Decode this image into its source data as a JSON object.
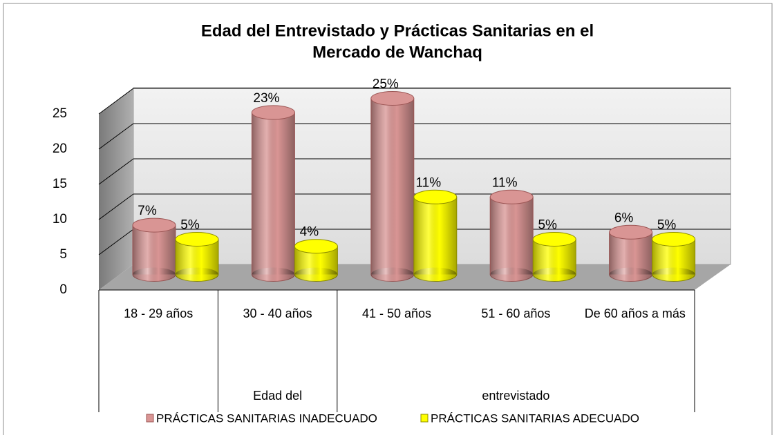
{
  "chart_data": {
    "type": "bar3d",
    "title": [
      "Edad del Entrevistado y Prácticas Sanitarias en el",
      "Mercado de Wanchaq"
    ],
    "categories": [
      "18 - 29 años",
      "30 - 40 años",
      "41 - 50 años",
      "51 - 60 años",
      "De 60 años a más"
    ],
    "category_groups": [
      {
        "label": "Edad del",
        "from": 1,
        "to": 1
      },
      {
        "label": "entrevistado",
        "from": 2,
        "to": 4
      }
    ],
    "series": [
      {
        "name": "PRÁCTICAS SANITARIAS INADECUADO",
        "color": "#d99594",
        "values": [
          7,
          23,
          25,
          11,
          6
        ],
        "value_labels": [
          "7%",
          "23%",
          "25%",
          "11%",
          "6%"
        ]
      },
      {
        "name": "PRÁCTICAS SANITARIAS ADECUADO",
        "color": "#ffff00",
        "values": [
          5,
          4,
          11,
          5,
          5
        ],
        "value_labels": [
          "5%",
          "4%",
          "11%",
          "5%",
          "5%"
        ]
      }
    ],
    "ylim": [
      0,
      25
    ],
    "yticks": [
      0,
      5,
      10,
      15,
      20,
      25
    ],
    "grid": true,
    "legend": "bottom"
  }
}
